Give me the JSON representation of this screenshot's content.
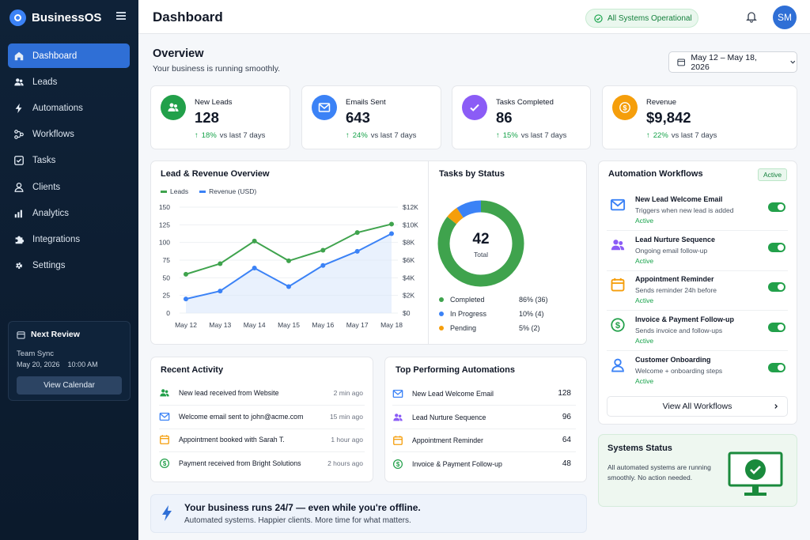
{
  "app": {
    "name": "BusinessOS"
  },
  "sidebar": {
    "items": [
      {
        "label": "Dashboard",
        "icon": "home-icon",
        "active": true
      },
      {
        "label": "Leads",
        "icon": "users-icon"
      },
      {
        "label": "Automations",
        "icon": "lightning-icon"
      },
      {
        "label": "Workflows",
        "icon": "workflow-icon"
      },
      {
        "label": "Tasks",
        "icon": "checkbox-icon"
      },
      {
        "label": "Clients",
        "icon": "person-icon"
      },
      {
        "label": "Analytics",
        "icon": "bar-chart-icon"
      },
      {
        "label": "Integrations",
        "icon": "puzzle-icon"
      },
      {
        "label": "Settings",
        "icon": "gear-icon"
      }
    ],
    "review": {
      "title": "Next Review",
      "event": "Team Sync",
      "date": "May 20, 2026",
      "time": "10:00 AM",
      "button": "View Calendar"
    }
  },
  "header": {
    "title": "Dashboard",
    "status": "All Systems Operational",
    "avatar_initials": "SM"
  },
  "overview": {
    "title": "Overview",
    "subtitle": "Your business is running smoothly.",
    "date_range": "May 12 – May 18, 2026"
  },
  "kpis": [
    {
      "label": "New Leads",
      "value": "128",
      "delta": "18%",
      "delta_text": "vs last 7 days",
      "color": "#22a04a",
      "icon": "users-icon"
    },
    {
      "label": "Emails Sent",
      "value": "643",
      "delta": "24%",
      "delta_text": "vs last 7 days",
      "color": "#3b82f6",
      "icon": "envelope-icon"
    },
    {
      "label": "Tasks Completed",
      "value": "86",
      "delta": "15%",
      "delta_text": "vs last 7 days",
      "color": "#8b5cf6",
      "icon": "check-icon"
    },
    {
      "label": "Revenue",
      "value": "$9,842",
      "delta": "22%",
      "delta_text": "vs last 7 days",
      "color": "#f59e0b",
      "icon": "dollar-icon"
    }
  ],
  "lead_chart": {
    "title": "Lead & Revenue Overview",
    "legend": [
      "Leads",
      "Revenue (USD)"
    ]
  },
  "chart_data": {
    "type": "line",
    "categories": [
      "May 12",
      "May 13",
      "May 14",
      "May 15",
      "May 16",
      "May 17",
      "May 18"
    ],
    "series": [
      {
        "name": "Leads",
        "values": [
          55,
          70,
          102,
          74,
          89,
          114,
          126
        ],
        "color": "#3fa34d",
        "axis": "left"
      },
      {
        "name": "Revenue (USD)",
        "values": [
          1600,
          2500,
          5100,
          3000,
          5400,
          7000,
          9000
        ],
        "color": "#3b82f6",
        "axis": "right"
      }
    ],
    "y_left_ticks": [
      "0",
      "25",
      "50",
      "75",
      "100",
      "125",
      "150"
    ],
    "y_right_ticks": [
      "$0",
      "$2K",
      "$4K",
      "$6K",
      "$8K",
      "$10K",
      "$12K"
    ],
    "ylim_left": [
      0,
      150
    ],
    "ylim_right": [
      0,
      12000
    ]
  },
  "tasks": {
    "title": "Tasks by Status",
    "total": "42",
    "total_label": "Total",
    "items": [
      {
        "label": "Completed",
        "value": "86% (36)",
        "fraction": 0.857,
        "color": "#3fa34d"
      },
      {
        "label": "In Progress",
        "value": "10% (4)",
        "fraction": 0.095,
        "color": "#3b82f6"
      },
      {
        "label": "Pending",
        "value": "5% (2)",
        "fraction": 0.048,
        "color": "#f59e0b"
      }
    ]
  },
  "workflows": {
    "title": "Automation Workflows",
    "badge": "Active",
    "items": [
      {
        "name": "New Lead Welcome Email",
        "desc": "Triggers when new lead is added",
        "status": "Active",
        "icon": "envelope-icon",
        "color": "#3b82f6"
      },
      {
        "name": "Lead Nurture Sequence",
        "desc": "Ongoing email follow-up",
        "status": "Active",
        "icon": "users-icon",
        "color": "#8b5cf6"
      },
      {
        "name": "Appointment Reminder",
        "desc": "Sends reminder 24h before",
        "status": "Active",
        "icon": "calendar-icon",
        "color": "#f59e0b"
      },
      {
        "name": "Invoice & Payment Follow-up",
        "desc": "Sends invoice and follow-ups",
        "status": "Active",
        "icon": "dollar-icon",
        "color": "#22a04a"
      },
      {
        "name": "Customer Onboarding",
        "desc": "Welcome + onboarding steps",
        "status": "Active",
        "icon": "person-icon",
        "color": "#3b82f6"
      }
    ],
    "view_all": "View All Workflows"
  },
  "activity": {
    "title": "Recent Activity",
    "items": [
      {
        "text": "New lead received from Website",
        "time": "2 min ago",
        "icon": "users-icon",
        "color": "#22a04a"
      },
      {
        "text": "Welcome email sent to john@acme.com",
        "time": "15 min ago",
        "icon": "envelope-icon",
        "color": "#3b82f6"
      },
      {
        "text": "Appointment booked with Sarah T.",
        "time": "1 hour ago",
        "icon": "calendar-icon",
        "color": "#f59e0b"
      },
      {
        "text": "Payment received from Bright Solutions",
        "time": "2 hours ago",
        "icon": "dollar-icon",
        "color": "#22a04a"
      }
    ]
  },
  "top_automations": {
    "title": "Top Performing Automations",
    "items": [
      {
        "name": "New Lead Welcome Email",
        "value": "128",
        "icon": "envelope-icon",
        "color": "#3b82f6"
      },
      {
        "name": "Lead Nurture Sequence",
        "value": "96",
        "icon": "users-icon",
        "color": "#8b5cf6"
      },
      {
        "name": "Appointment Reminder",
        "value": "64",
        "icon": "calendar-icon",
        "color": "#f59e0b"
      },
      {
        "name": "Invoice & Payment Follow-up",
        "value": "48",
        "icon": "dollar-icon",
        "color": "#22a04a"
      }
    ]
  },
  "banner": {
    "title": "Your business runs 24/7 — even while you're offline.",
    "subtitle": "Automated systems. Happier clients. More time for what matters."
  },
  "systems": {
    "title": "Systems Status",
    "text1": "All automated systems are running",
    "text2": "smoothly. No action needed."
  }
}
